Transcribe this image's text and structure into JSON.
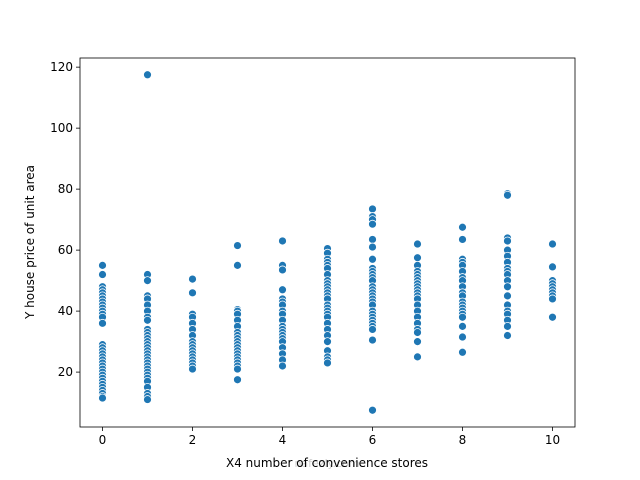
{
  "chart_data": {
    "type": "scatter",
    "xlabel": "X4 number of convenience stores",
    "ylabel": "Y house price of unit area",
    "watermark": "nafezly.com",
    "color": "#1f77b4",
    "xlim": [
      -0.5,
      10.5
    ],
    "ylim": [
      2,
      123
    ],
    "xticks": [
      0,
      2,
      4,
      6,
      8,
      10
    ],
    "yticks": [
      20,
      40,
      60,
      80,
      100,
      120
    ],
    "x": [
      0,
      0,
      0,
      0,
      0,
      0,
      0,
      0,
      0,
      0,
      0,
      0,
      0,
      0,
      0,
      0,
      0,
      0,
      0,
      0,
      0,
      0,
      0,
      0,
      0,
      0,
      0,
      0,
      0,
      0,
      0,
      0,
      0,
      1,
      1,
      1,
      1,
      1,
      1,
      1,
      1,
      1,
      1,
      1,
      1,
      1,
      1,
      1,
      1,
      1,
      1,
      1,
      1,
      1,
      1,
      1,
      1,
      1,
      1,
      1,
      1,
      1,
      1,
      1,
      2,
      2,
      2,
      2,
      2,
      2,
      2,
      2,
      2,
      2,
      2,
      2,
      2,
      2,
      2,
      2,
      2,
      3,
      3,
      3,
      3,
      3,
      3,
      3,
      3,
      3,
      3,
      3,
      3,
      3,
      3,
      3,
      3,
      3,
      3,
      3,
      3,
      3,
      4,
      4,
      4,
      4,
      4,
      4,
      4,
      4,
      4,
      4,
      4,
      4,
      4,
      4,
      4,
      4,
      4,
      4,
      4,
      4,
      5,
      5,
      5,
      5,
      5,
      5,
      5,
      5,
      5,
      5,
      5,
      5,
      5,
      5,
      5,
      5,
      5,
      5,
      5,
      5,
      5,
      5,
      5,
      5,
      5,
      5,
      5,
      6,
      6,
      6,
      6,
      6,
      6,
      6,
      6,
      6,
      6,
      6,
      6,
      6,
      6,
      6,
      6,
      6,
      6,
      6,
      6,
      6,
      6,
      6,
      6,
      6,
      6,
      6,
      6,
      7,
      7,
      7,
      7,
      7,
      7,
      7,
      7,
      7,
      7,
      7,
      7,
      7,
      7,
      7,
      7,
      7,
      7,
      7,
      7,
      7,
      8,
      8,
      8,
      8,
      8,
      8,
      8,
      8,
      8,
      8,
      8,
      8,
      8,
      8,
      8,
      8,
      8,
      8,
      8,
      8,
      9,
      9,
      9,
      9,
      9,
      9,
      9,
      9,
      9,
      9,
      9,
      9,
      9,
      9,
      9,
      9,
      9,
      9,
      9,
      10,
      10,
      10,
      10,
      10,
      10,
      10,
      10,
      10,
      10
    ],
    "values": [
      55,
      52,
      48,
      47,
      46,
      45,
      44,
      43,
      42,
      41,
      40,
      39,
      38,
      36,
      29,
      28,
      27,
      26,
      25,
      24,
      23,
      22,
      21,
      20,
      19,
      18,
      17,
      16,
      15,
      14,
      13,
      12,
      11.5,
      117.5,
      52,
      50,
      45,
      44,
      42,
      40,
      38,
      37,
      34,
      33,
      32,
      31,
      30,
      29,
      28,
      27,
      26,
      25,
      24,
      23,
      22,
      21,
      20,
      19,
      18,
      17,
      15,
      13,
      12,
      11,
      50.5,
      46,
      39,
      38,
      36,
      34,
      32,
      30,
      29,
      28,
      27,
      26,
      25,
      24,
      23,
      22,
      21,
      61.5,
      55,
      40.5,
      40,
      39,
      37,
      35,
      33,
      32,
      31,
      30,
      29,
      28,
      27,
      26,
      25,
      24,
      23,
      22,
      21,
      17.5,
      63,
      55,
      53.5,
      47,
      44,
      43,
      42,
      40,
      39,
      37,
      35,
      34,
      33,
      32,
      31,
      30,
      28,
      26,
      24,
      22,
      60.5,
      59,
      57,
      56,
      55,
      54,
      52,
      50,
      49,
      48,
      47,
      46,
      45,
      44,
      42,
      41,
      40,
      39,
      38,
      36,
      34,
      32,
      30,
      27,
      25,
      24,
      23,
      73.5,
      71,
      70,
      68.5,
      63.5,
      61,
      57,
      54,
      53,
      52,
      51,
      50,
      48,
      47,
      46,
      45,
      44,
      43,
      42,
      40,
      39,
      38,
      37,
      36,
      35,
      34,
      30.5,
      7.5,
      62,
      57.5,
      55,
      53,
      52,
      51,
      50,
      49,
      48,
      47,
      46,
      45,
      44,
      42,
      40,
      38,
      36,
      34,
      33,
      30,
      25,
      67.5,
      63.5,
      57,
      56,
      55,
      53,
      51,
      50,
      48,
      46,
      45,
      43,
      42,
      41,
      40,
      39,
      38,
      35,
      31.5,
      26.5,
      78.5,
      78,
      64,
      63,
      60,
      58,
      56,
      54,
      53,
      52,
      50,
      48,
      45,
      42,
      40,
      39,
      37,
      35,
      32,
      62,
      54.5,
      50,
      49,
      48,
      47,
      46,
      45,
      44,
      38
    ]
  }
}
